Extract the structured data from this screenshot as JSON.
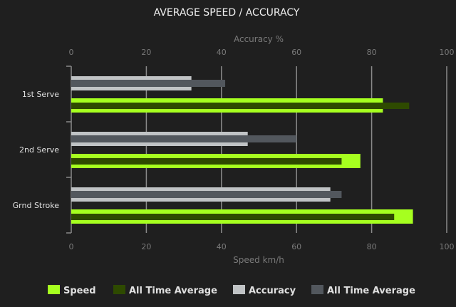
{
  "chart_data": {
    "type": "bar",
    "orientation": "horizontal",
    "title": "AVERAGE SPEED / ACCURACY",
    "top_axis_label": "Accuracy %",
    "bottom_axis_label": "Speed km/h",
    "xlim": [
      0,
      100
    ],
    "ticks": [
      "0",
      "20",
      "40",
      "60",
      "80",
      "100"
    ],
    "categories": [
      "1st Serve",
      "2nd Serve",
      "Grnd Stroke"
    ],
    "grid": true,
    "legend_position": "bottom",
    "series": [
      {
        "name": "Speed",
        "axis": "bottom",
        "color": "#a6ff1f",
        "values": [
          83,
          77,
          91
        ]
      },
      {
        "name": "All Time Average",
        "axis": "bottom",
        "color": "#2e4a00",
        "values": [
          90,
          72,
          86
        ]
      },
      {
        "name": "Accuracy",
        "axis": "top",
        "color": "#c0c3c5",
        "values": [
          32,
          47,
          69
        ]
      },
      {
        "name": "All Time Average",
        "axis": "top",
        "color": "#52575d",
        "values": [
          41,
          60,
          72
        ]
      }
    ]
  }
}
